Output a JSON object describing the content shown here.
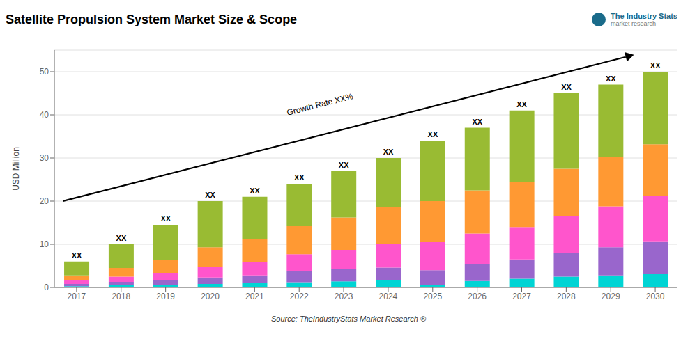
{
  "chart_data": {
    "type": "bar",
    "title": "Satellite Propulsion System Market Size & Scope",
    "ylabel": "USD Million",
    "categories": [
      "2017",
      "2018",
      "2019",
      "2020",
      "2021",
      "2022",
      "2023",
      "2024",
      "2025",
      "2026",
      "2027",
      "2028",
      "2029",
      "2030"
    ],
    "series": [
      {
        "color": "#00D4D4",
        "values": [
          0.3,
          0.5,
          0.6,
          0.8,
          1.0,
          1.2,
          1.4,
          1.6,
          0.5,
          1.5,
          2.0,
          2.5,
          2.8,
          3.2
        ]
      },
      {
        "color": "#9966CC",
        "values": [
          0.5,
          0.8,
          1.0,
          1.5,
          1.8,
          2.5,
          2.8,
          3.0,
          3.5,
          4.0,
          4.5,
          5.5,
          6.5,
          7.5
        ]
      },
      {
        "color": "#FF55CC",
        "values": [
          0.8,
          1.2,
          1.8,
          2.5,
          3.0,
          4.0,
          4.5,
          5.5,
          6.5,
          7.0,
          7.5,
          8.5,
          9.5,
          10.5
        ]
      },
      {
        "color": "#FF9933",
        "values": [
          1.2,
          2.0,
          3.0,
          4.5,
          5.5,
          6.5,
          7.5,
          8.5,
          9.5,
          10.0,
          10.5,
          11.0,
          11.5,
          12.0
        ]
      },
      {
        "color": "#99BB33",
        "values": [
          3.2,
          5.5,
          8.1,
          10.7,
          9.7,
          9.8,
          10.8,
          11.4,
          14.0,
          14.5,
          16.5,
          17.5,
          16.7,
          16.8
        ]
      }
    ],
    "stacked": true,
    "ylim": [
      0,
      55
    ],
    "yticks": [
      0,
      10,
      20,
      30,
      40,
      50
    ],
    "grid": true,
    "annotations": [
      {
        "text": "XX",
        "x": "2017"
      },
      {
        "text": "XX",
        "x": "2018"
      },
      {
        "text": "XX",
        "x": "2019"
      },
      {
        "text": "XX",
        "x": "2020"
      },
      {
        "text": "XX",
        "x": "2021"
      },
      {
        "text": "XX",
        "x": "2022"
      },
      {
        "text": "XX",
        "x": "2023"
      },
      {
        "text": "XX",
        "x": "2024"
      },
      {
        "text": "XX",
        "x": "2025"
      },
      {
        "text": "XX",
        "x": "2026"
      },
      {
        "text": "XX",
        "x": "2027"
      },
      {
        "text": "XX",
        "x": "2028"
      },
      {
        "text": "XX",
        "x": "2029"
      },
      {
        "text": "XX",
        "x": "2030"
      },
      {
        "text": "Growth Rate XX%"
      },
      {
        "text": "Source: TheIndustryStats Market Research ®"
      },
      {
        "text": "The Industry Stats"
      },
      {
        "text": "market research"
      }
    ]
  }
}
